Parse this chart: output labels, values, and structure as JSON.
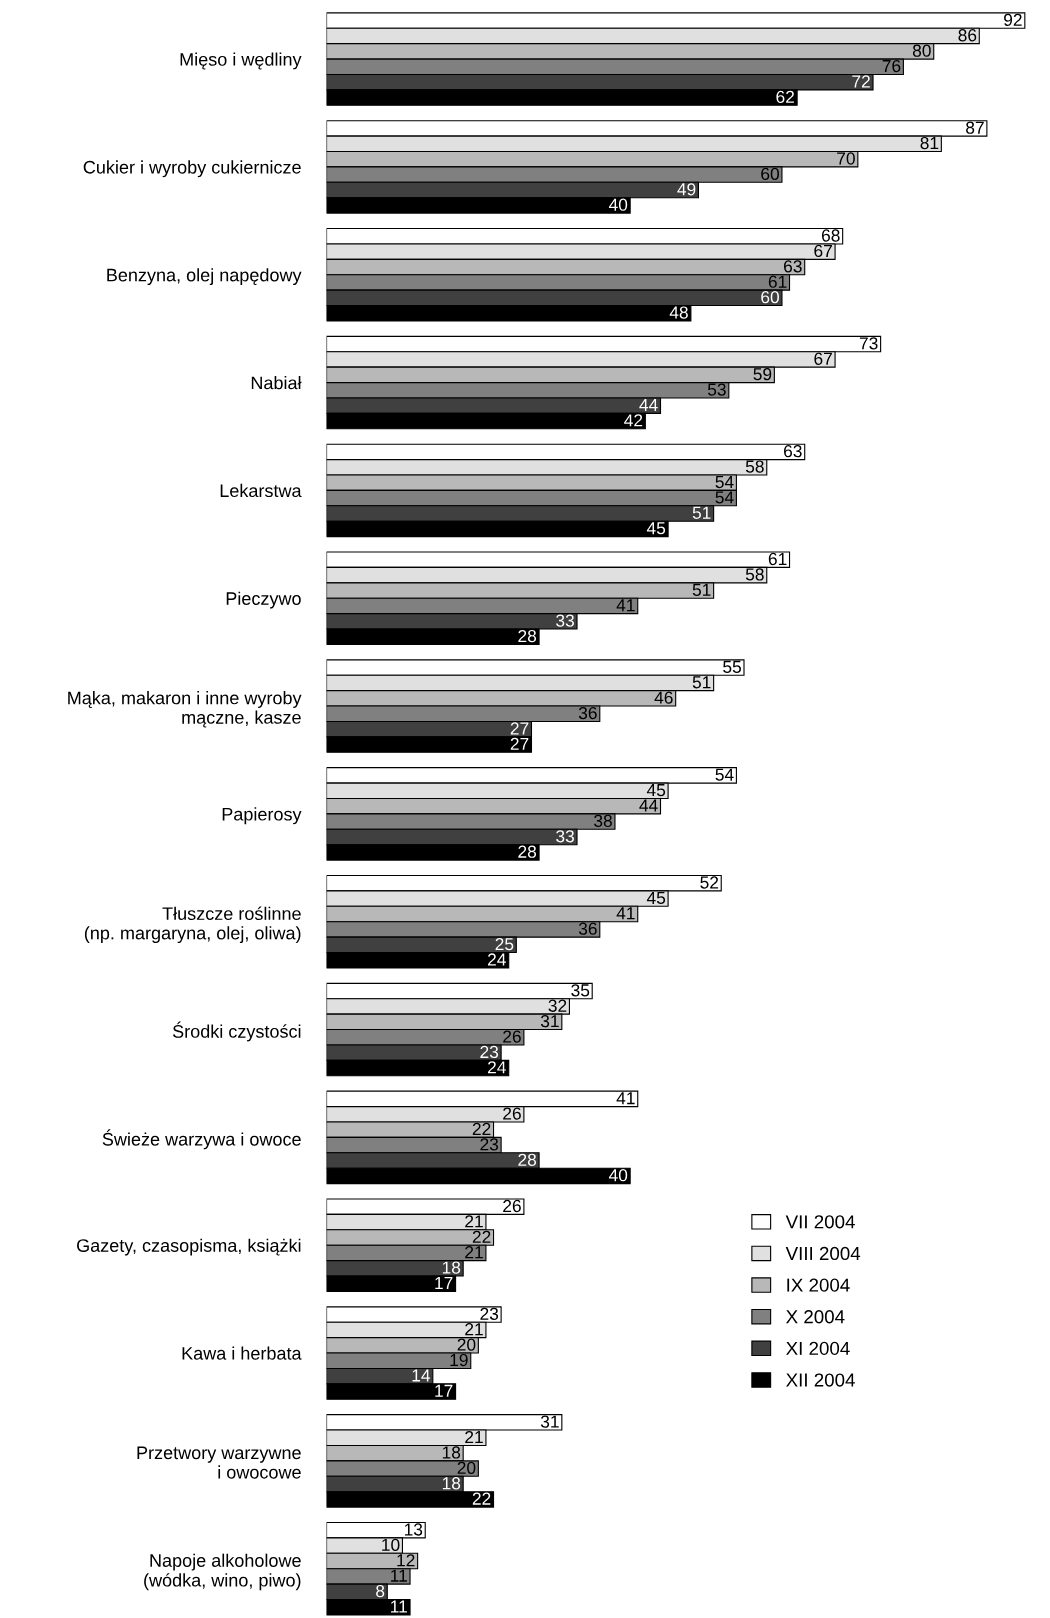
{
  "chart_data": {
    "type": "bar",
    "orientation": "horizontal",
    "data_labels": true,
    "legend": "right",
    "categories": [
      "Mięso i wędliny",
      "Cukier i wyroby cukiernicze",
      "Benzyna, olej napędowy",
      "Nabiał",
      "Lekarstwa",
      "Pieczywo",
      "Mąka, makaron i inne wyroby\nmączne, kasze",
      "Papierosy",
      "Tłuszcze roślinne\n(np. margaryna, olej, oliwa)",
      "Środki czystości",
      "Świeże warzywa i owoce",
      "Gazety, czasopisma, książki",
      "Kawa i herbata",
      "Przetwory warzywne\ni owocowe",
      "Napoje alkoholowe\n(wódka, wino, piwo)"
    ],
    "series": [
      {
        "name": "VII 2004",
        "color": "#ffffff",
        "values": [
          92,
          87,
          68,
          73,
          63,
          61,
          55,
          54,
          52,
          35,
          41,
          26,
          23,
          31,
          13
        ]
      },
      {
        "name": "VIII 2004",
        "color": "#e0e0e0",
        "values": [
          86,
          81,
          67,
          67,
          58,
          58,
          51,
          45,
          45,
          32,
          26,
          21,
          21,
          21,
          10
        ]
      },
      {
        "name": "IX 2004",
        "color": "#b8b8b8",
        "values": [
          80,
          70,
          63,
          59,
          54,
          51,
          46,
          44,
          41,
          31,
          22,
          22,
          20,
          18,
          12
        ]
      },
      {
        "name": "X 2004",
        "color": "#808080",
        "values": [
          76,
          60,
          61,
          53,
          54,
          41,
          36,
          38,
          36,
          26,
          23,
          21,
          19,
          20,
          11
        ]
      },
      {
        "name": "XI 2004",
        "color": "#404040",
        "values": [
          72,
          49,
          60,
          44,
          51,
          33,
          27,
          33,
          25,
          23,
          28,
          18,
          14,
          18,
          8
        ]
      },
      {
        "name": "XII 2004",
        "color": "#000000",
        "values": [
          62,
          40,
          48,
          42,
          45,
          28,
          27,
          28,
          24,
          24,
          40,
          17,
          17,
          22,
          11
        ]
      }
    ]
  }
}
